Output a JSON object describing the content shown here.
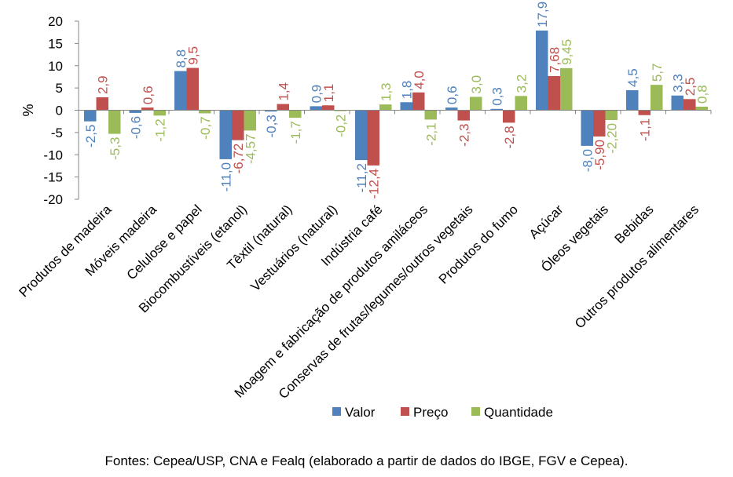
{
  "chart_data": {
    "type": "bar",
    "title": "",
    "xlabel": "",
    "ylabel": "%",
    "ylim": [
      -20,
      20
    ],
    "yticks": [
      -20,
      -15,
      -10,
      -5,
      0,
      5,
      10,
      15,
      20
    ],
    "legend_position": "bottom",
    "grid": false,
    "categories": [
      "Produtos de madeira",
      "Móveis madeira",
      "Celulose e papel",
      "Biocombustíveis (etanol)",
      "Têxtil (natural)",
      "Vestuários (natural)",
      "Indústria café",
      "Moagem e fabricação de produtos amiláceos",
      "Conservas de frutas/legumes/outros vegetais",
      "Produtos do fumo",
      "Açúcar",
      "Óleos vegetais",
      "Bebidas",
      "Outros produtos alimentares"
    ],
    "series": [
      {
        "name": "Valor",
        "color": "#4F81BD",
        "values": [
          -2.5,
          -0.6,
          8.8,
          -11.0,
          -0.3,
          0.9,
          -11.2,
          1.8,
          0.6,
          0.3,
          17.9,
          -8.0,
          4.5,
          3.3
        ],
        "labels": [
          "-2,5",
          "-0,6",
          "8,8",
          "-11,0",
          "-0,3",
          "0,9",
          "-11,2",
          "1,8",
          "0,6",
          "0,3",
          "17,9",
          "-8,0",
          "4,5",
          "3,3"
        ]
      },
      {
        "name": "Preço",
        "color": "#C0504D",
        "values": [
          2.9,
          0.6,
          9.5,
          -6.72,
          1.4,
          1.1,
          -12.4,
          4.0,
          -2.3,
          -2.8,
          7.68,
          -5.9,
          -1.1,
          2.5
        ],
        "labels": [
          "2,9",
          "0,6",
          "9,5",
          "-6,72",
          "1,4",
          "1,1",
          "-12,4",
          "4,0",
          "-2,3",
          "-2,8",
          "7,68",
          "-5,90",
          "-1,1",
          "2,5"
        ]
      },
      {
        "name": "Quantidade",
        "color": "#9BBB59",
        "values": [
          -5.3,
          -1.2,
          -0.7,
          -4.57,
          -1.7,
          -0.2,
          1.3,
          -2.1,
          3.0,
          3.2,
          9.45,
          -2.2,
          5.7,
          0.8
        ],
        "labels": [
          "-5,3",
          "-1,2",
          "-0,7",
          "-4,57",
          "-1,7",
          "-0,2",
          "1,3",
          "-2,1",
          "3,0",
          "3,2",
          "9,45",
          "-2,20",
          "5,7",
          "0,8"
        ]
      }
    ]
  },
  "source": "Fontes: Cepea/USP, CNA e Fealq (elaborado a partir de dados do IBGE, FGV e Cepea)."
}
